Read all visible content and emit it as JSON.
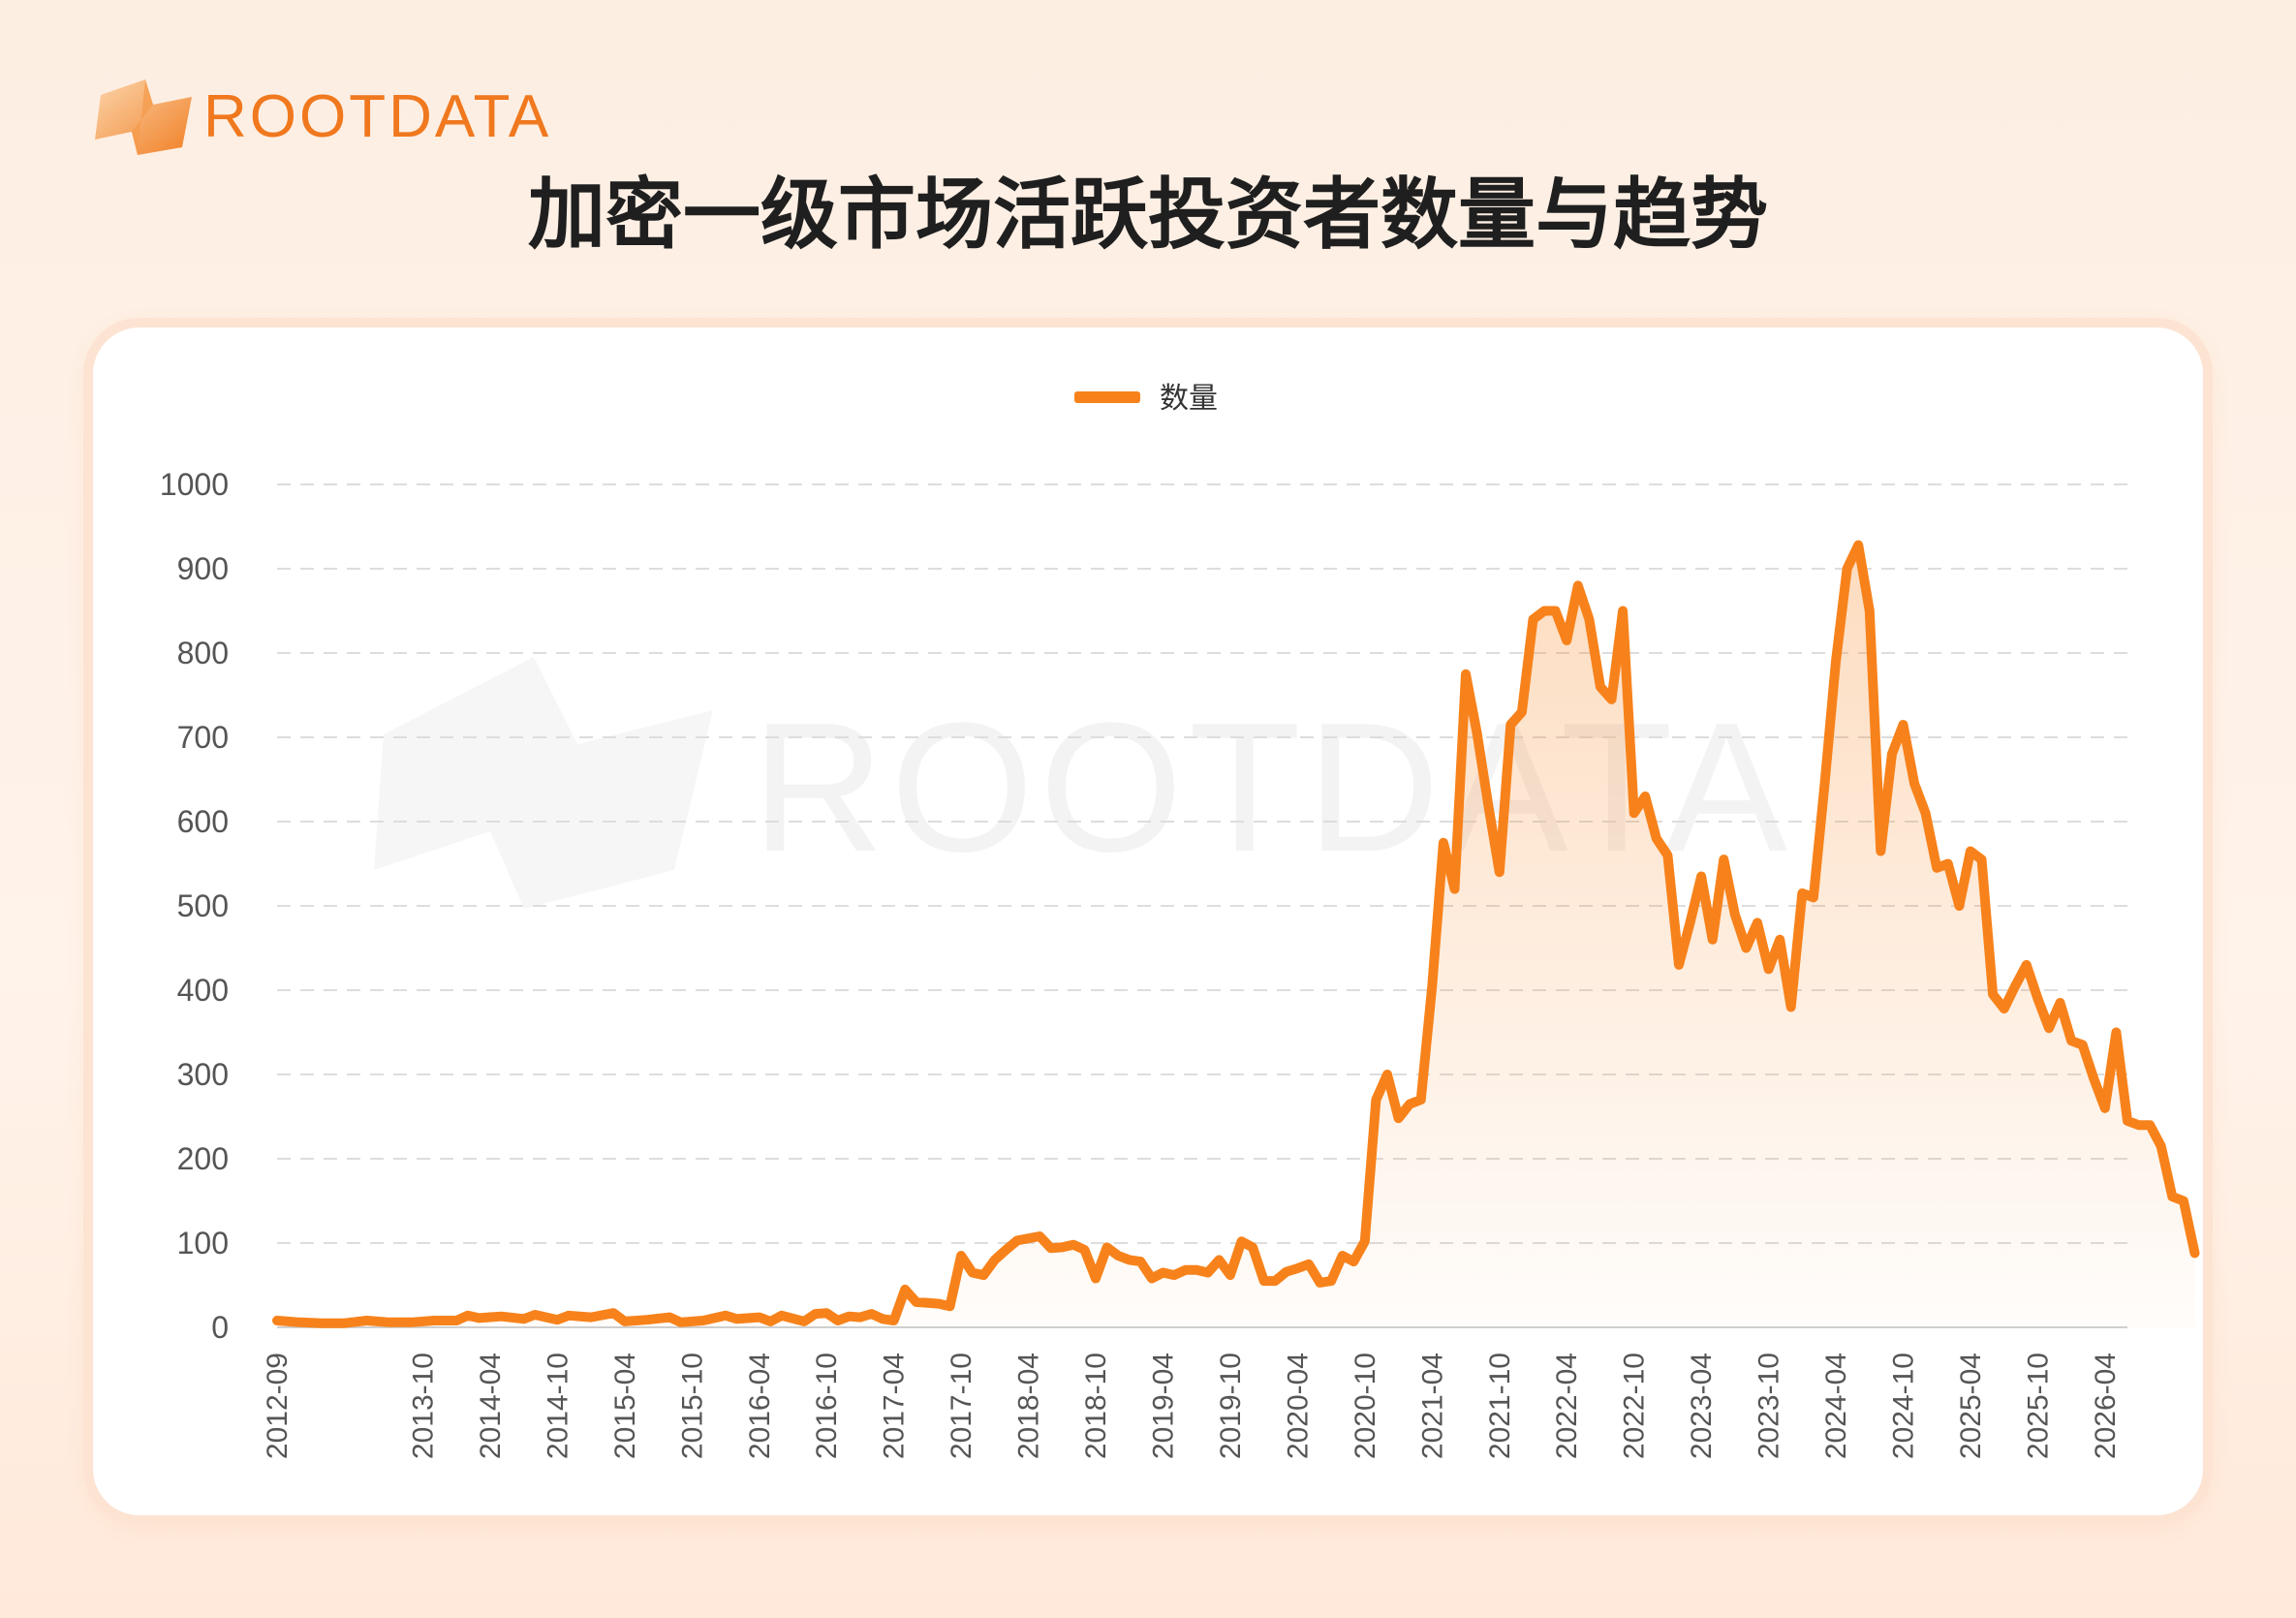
{
  "brand": {
    "name": "ROOTDATA",
    "accent": "#f0781e"
  },
  "title": "加密一级市场活跃投资者数量与趋势",
  "chart_data": {
    "type": "area",
    "title": "加密一级市场活跃投资者数量与趋势",
    "xlabel": "",
    "ylabel": "",
    "ylim": [
      0,
      1000
    ],
    "yticks": [
      0,
      100,
      200,
      300,
      400,
      500,
      600,
      700,
      800,
      900,
      1000
    ],
    "xlim": [
      "2012-09",
      "2026-06"
    ],
    "xticks": [
      "2012-09",
      "2013-10",
      "2014-04",
      "2014-10",
      "2015-04",
      "2015-10",
      "2016-04",
      "2016-10",
      "2017-04",
      "2017-10",
      "2018-04",
      "2018-10",
      "2019-04",
      "2019-10",
      "2020-04",
      "2020-10",
      "2021-04",
      "2021-10",
      "2022-04",
      "2022-10",
      "2023-04",
      "2023-10",
      "2024-04",
      "2024-10",
      "2025-04",
      "2025-10",
      "2026-04"
    ],
    "grid": true,
    "legend": "top-center",
    "series": [
      {
        "name": "数量",
        "color": "#f7821b",
        "points": [
          [
            "2012-09",
            8
          ],
          [
            "2012-11",
            6
          ],
          [
            "2013-01",
            5
          ],
          [
            "2013-03",
            5
          ],
          [
            "2013-05",
            8
          ],
          [
            "2013-07",
            6
          ],
          [
            "2013-09",
            6
          ],
          [
            "2013-11",
            8
          ],
          [
            "2014-01",
            8
          ],
          [
            "2014-02",
            14
          ],
          [
            "2014-03",
            11
          ],
          [
            "2014-05",
            13
          ],
          [
            "2014-07",
            10
          ],
          [
            "2014-08",
            15
          ],
          [
            "2014-10",
            9
          ],
          [
            "2014-11",
            14
          ],
          [
            "2015-01",
            12
          ],
          [
            "2015-03",
            17
          ],
          [
            "2015-04",
            7
          ],
          [
            "2015-06",
            9
          ],
          [
            "2015-08",
            12
          ],
          [
            "2015-09",
            6
          ],
          [
            "2015-11",
            8
          ],
          [
            "2016-01",
            14
          ],
          [
            "2016-02",
            10
          ],
          [
            "2016-04",
            12
          ],
          [
            "2016-05",
            7
          ],
          [
            "2016-06",
            14
          ],
          [
            "2016-08",
            7
          ],
          [
            "2016-09",
            16
          ],
          [
            "2016-10",
            17
          ],
          [
            "2016-11",
            8
          ],
          [
            "2016-12",
            13
          ],
          [
            "2017-01",
            12
          ],
          [
            "2017-02",
            16
          ],
          [
            "2017-03",
            10
          ],
          [
            "2017-04",
            8
          ],
          [
            "2017-05",
            45
          ],
          [
            "2017-06",
            30
          ],
          [
            "2017-08",
            28
          ],
          [
            "2017-09",
            25
          ],
          [
            "2017-10",
            85
          ],
          [
            "2017-11",
            65
          ],
          [
            "2017-12",
            62
          ],
          [
            "2018-01",
            80
          ],
          [
            "2018-02",
            92
          ],
          [
            "2018-03",
            103
          ],
          [
            "2018-05",
            108
          ],
          [
            "2018-06",
            94
          ],
          [
            "2018-07",
            95
          ],
          [
            "2018-08",
            98
          ],
          [
            "2018-09",
            92
          ],
          [
            "2018-10",
            58
          ],
          [
            "2018-11",
            95
          ],
          [
            "2018-12",
            85
          ],
          [
            "2019-01",
            80
          ],
          [
            "2019-02",
            78
          ],
          [
            "2019-03",
            58
          ],
          [
            "2019-04",
            65
          ],
          [
            "2019-05",
            62
          ],
          [
            "2019-06",
            68
          ],
          [
            "2019-07",
            68
          ],
          [
            "2019-08",
            65
          ],
          [
            "2019-09",
            80
          ],
          [
            "2019-10",
            62
          ],
          [
            "2019-11",
            102
          ],
          [
            "2019-12",
            95
          ],
          [
            "2020-01",
            55
          ],
          [
            "2020-02",
            55
          ],
          [
            "2020-03",
            66
          ],
          [
            "2020-04",
            70
          ],
          [
            "2020-05",
            75
          ],
          [
            "2020-06",
            53
          ],
          [
            "2020-07",
            55
          ],
          [
            "2020-08",
            85
          ],
          [
            "2020-09",
            78
          ],
          [
            "2020-10",
            102
          ],
          [
            "2020-11",
            270
          ],
          [
            "2020-12",
            300
          ],
          [
            "2021-01",
            248
          ],
          [
            "2021-02",
            265
          ],
          [
            "2021-03",
            270
          ],
          [
            "2021-04",
            405
          ],
          [
            "2021-05",
            575
          ],
          [
            "2021-06",
            520
          ],
          [
            "2021-07",
            775
          ],
          [
            "2021-08",
            705
          ],
          [
            "2021-09",
            620
          ],
          [
            "2021-10",
            540
          ],
          [
            "2021-11",
            715
          ],
          [
            "2021-12",
            730
          ],
          [
            "2022-01",
            840
          ],
          [
            "2022-02",
            850
          ],
          [
            "2022-03",
            850
          ],
          [
            "2022-04",
            815
          ],
          [
            "2022-05",
            880
          ],
          [
            "2022-06",
            840
          ],
          [
            "2022-07",
            760
          ],
          [
            "2022-08",
            745
          ],
          [
            "2022-09",
            850
          ],
          [
            "2022-10",
            610
          ],
          [
            "2022-11",
            630
          ],
          [
            "2022-12",
            580
          ],
          [
            "2023-01",
            560
          ],
          [
            "2023-02",
            430
          ],
          [
            "2023-03",
            480
          ],
          [
            "2023-04",
            535
          ],
          [
            "2023-05",
            460
          ],
          [
            "2023-06",
            555
          ],
          [
            "2023-07",
            490
          ],
          [
            "2023-08",
            450
          ],
          [
            "2023-09",
            480
          ],
          [
            "2023-10",
            425
          ],
          [
            "2023-11",
            460
          ],
          [
            "2023-12",
            380
          ],
          [
            "2024-01",
            515
          ],
          [
            "2024-02",
            510
          ],
          [
            "2024-03",
            645
          ],
          [
            "2024-04",
            790
          ],
          [
            "2024-05",
            900
          ],
          [
            "2024-06",
            928
          ],
          [
            "2024-07",
            850
          ],
          [
            "2024-08",
            565
          ],
          [
            "2024-09",
            680
          ],
          [
            "2024-10",
            715
          ],
          [
            "2024-11",
            645
          ],
          [
            "2024-12",
            610
          ],
          [
            "2025-01",
            545
          ],
          [
            "2025-02",
            550
          ],
          [
            "2025-03",
            500
          ],
          [
            "2025-04",
            565
          ],
          [
            "2025-05",
            555
          ],
          [
            "2025-06",
            395
          ],
          [
            "2025-07",
            378
          ],
          [
            "2025-08",
            405
          ],
          [
            "2025-09",
            430
          ],
          [
            "2025-10",
            390
          ],
          [
            "2025-11",
            355
          ],
          [
            "2025-12",
            385
          ],
          [
            "2026-01",
            340
          ],
          [
            "2026-02",
            335
          ],
          [
            "2026-03",
            295
          ],
          [
            "2026-04",
            260
          ],
          [
            "2026-05",
            350
          ],
          [
            "2026-06",
            245
          ],
          [
            "2026-07",
            240
          ],
          [
            "2026-08",
            240
          ],
          [
            "2026-09",
            215
          ],
          [
            "2026-10",
            155
          ],
          [
            "2026-11",
            150
          ],
          [
            "2026-12",
            88
          ]
        ]
      }
    ]
  }
}
